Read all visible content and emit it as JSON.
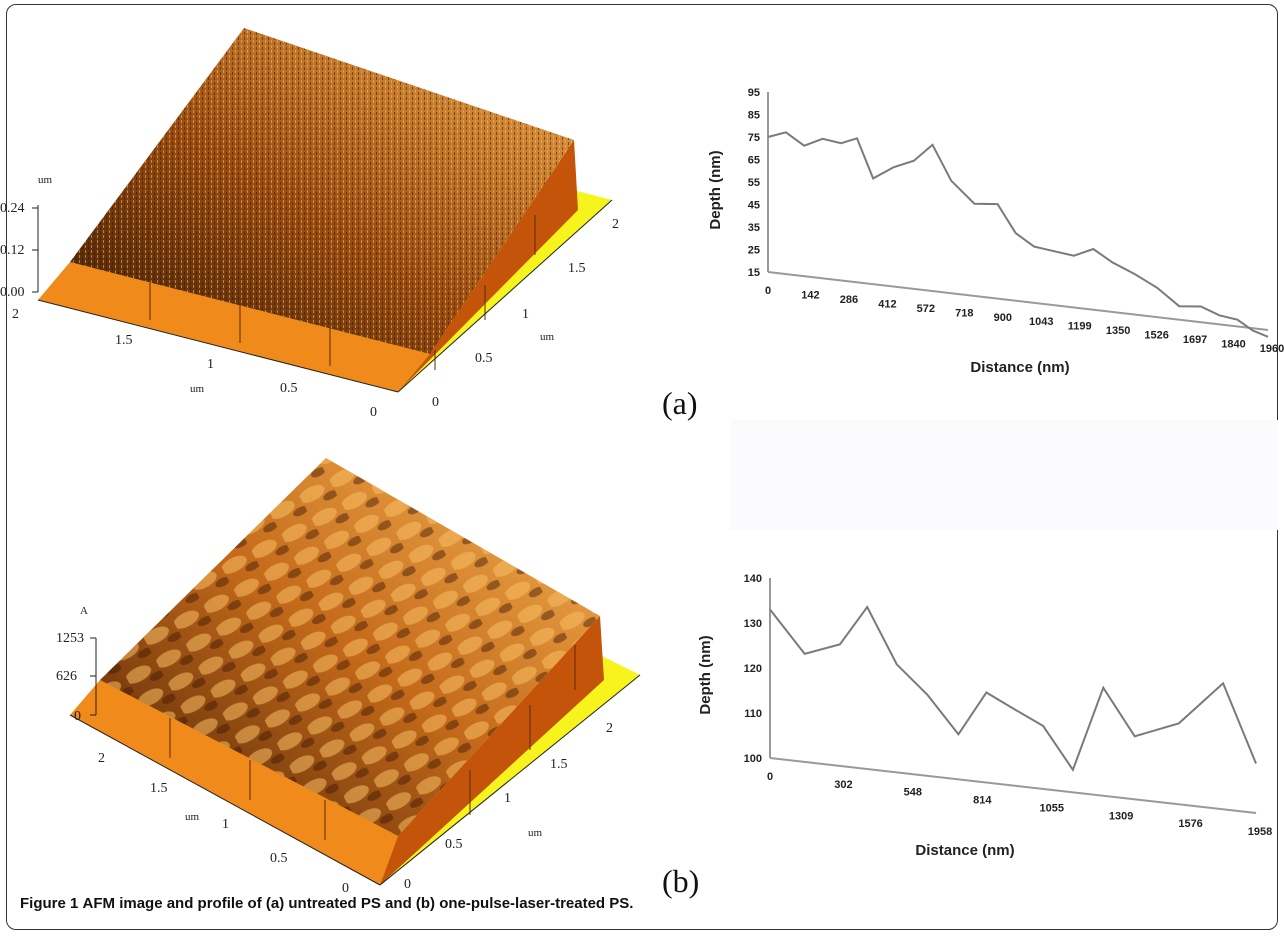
{
  "figure": {
    "caption_label": "Figure 1",
    "caption_text": "AFM image and profile of (a) untreated PS and (b) one-pulse-laser-treated PS."
  },
  "panels": {
    "a_label": "(a)",
    "b_label": "(b)"
  },
  "afm_a": {
    "z_unit": "um",
    "z_ticks": [
      "0.24",
      "0.12",
      "0.00"
    ],
    "left_ticks": [
      "2",
      "1.5",
      "1",
      "0.5",
      "0"
    ],
    "left_unit": "um",
    "right_ticks": [
      "0",
      "0.5",
      "1",
      "1.5",
      "2"
    ],
    "right_unit": "um"
  },
  "afm_b": {
    "z_unit": "A",
    "z_ticks": [
      "1253",
      "626",
      "0"
    ],
    "left_ticks": [
      "2",
      "1.5",
      "1",
      "0.5",
      "0"
    ],
    "left_unit": "um",
    "right_ticks": [
      "0",
      "0.5",
      "1",
      "1.5",
      "2"
    ],
    "right_unit": "um"
  },
  "chart_data": [
    {
      "type": "line",
      "xlabel": "Distance (nm)",
      "ylabel": "Depth (nm)",
      "ylim": [
        15,
        95
      ],
      "y_ticks": [
        15,
        25,
        35,
        45,
        55,
        65,
        75,
        85,
        95
      ],
      "x_tick_labels": [
        "0",
        "142",
        "286",
        "412",
        "572",
        "718",
        "900",
        "1043",
        "1199",
        "1350",
        "1526",
        "1697",
        "1840",
        "1960"
      ],
      "x": [
        0,
        70,
        142,
        214,
        286,
        349,
        412,
        492,
        572,
        645,
        718,
        809,
        900,
        971,
        1043,
        1121,
        1199,
        1275,
        1350,
        1438,
        1526,
        1612,
        1697,
        1769,
        1840,
        1900,
        1960
      ],
      "y": [
        75,
        78,
        73,
        77,
        76,
        79,
        62,
        68,
        72,
        80,
        65,
        56,
        57,
        45,
        40,
        39,
        38,
        42,
        37,
        33,
        28,
        21,
        22,
        19,
        18,
        14,
        12
      ]
    },
    {
      "type": "line",
      "xlabel": "Distance (nm)",
      "ylabel": "Depth (nm)",
      "ylim": [
        100,
        140
      ],
      "y_ticks": [
        100,
        110,
        120,
        130,
        140
      ],
      "x_tick_labels": [
        "0",
        "302",
        "548",
        "814",
        "1055",
        "1309",
        "1576",
        "1958"
      ],
      "x": [
        0,
        150,
        302,
        420,
        548,
        680,
        814,
        935,
        1055,
        1180,
        1309,
        1440,
        1576,
        1767,
        1958,
        2100
      ],
      "y": [
        133,
        124,
        127,
        136,
        124,
        118,
        110,
        120,
        117,
        114,
        105,
        124,
        114,
        118,
        128,
        111
      ]
    }
  ]
}
